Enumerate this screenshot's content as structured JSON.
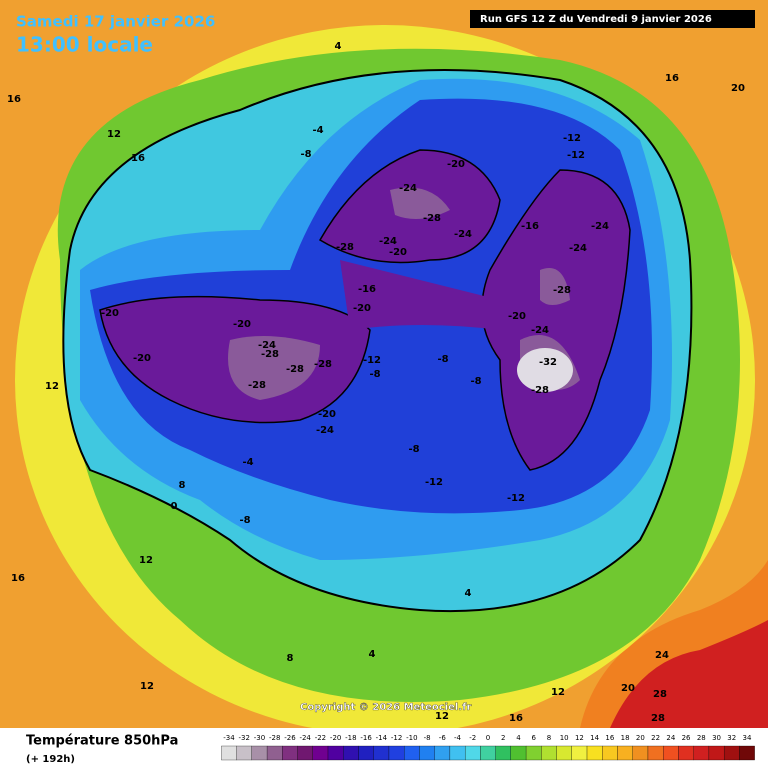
{
  "header": {
    "date": "Samedi 17 janvier 2026",
    "time": "13:00 locale",
    "run": "Run GFS 12 Z du Vendredi 9 janvier 2026"
  },
  "footer": {
    "title": "Température 850hPa",
    "lead": "(+ 192h)",
    "copyright": "Copyright © 2026 Meteociel.fr"
  },
  "legend": {
    "ticks": [
      -34,
      -32,
      -30,
      -28,
      -26,
      -24,
      -22,
      -20,
      -18,
      -16,
      -14,
      -12,
      -10,
      -8,
      -6,
      -4,
      -2,
      0,
      2,
      4,
      6,
      8,
      10,
      12,
      14,
      16,
      18,
      20,
      22,
      24,
      26,
      28,
      30,
      32,
      34
    ],
    "colors": [
      "#e0e0e0",
      "#c8c0c8",
      "#a890a8",
      "#906090",
      "#803080",
      "#701870",
      "#700090",
      "#5000a0",
      "#3010b0",
      "#2020c0",
      "#2030d0",
      "#2040e0",
      "#2060f0",
      "#2080f0",
      "#30a0f0",
      "#40c0f0",
      "#50d8e8",
      "#40d0a0",
      "#30c060",
      "#50c030",
      "#80d030",
      "#b0e030",
      "#d8e830",
      "#f0f040",
      "#f8e020",
      "#f8c820",
      "#f8b020",
      "#f09020",
      "#f07020",
      "#f05020",
      "#e03020",
      "#d02020",
      "#c01818",
      "#a01010",
      "#700808"
    ]
  },
  "map_labels": [
    -32,
    -28,
    -28,
    -24,
    -24,
    -24,
    -20,
    -16,
    -20,
    -24,
    -28,
    -24,
    -28,
    -20,
    -16,
    -20,
    -24,
    -20,
    -20,
    -20,
    -24,
    -28,
    -28,
    -28,
    -28,
    -20,
    -24,
    -12,
    -8,
    -8,
    -8,
    -8,
    -12,
    -12,
    -12,
    -12,
    -8,
    -4,
    4,
    16,
    20,
    16,
    12,
    16,
    12,
    8,
    12,
    12,
    8,
    4,
    12,
    20,
    24,
    28,
    28,
    0,
    -4,
    -8,
    4,
    16,
    12,
    16
  ]
}
